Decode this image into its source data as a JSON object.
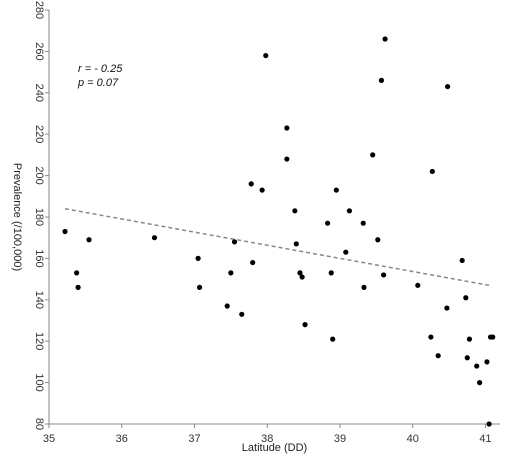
{
  "chart_data": {
    "type": "scatter",
    "title": "",
    "xlabel": "Latitude (DD)",
    "ylabel": "Prevalence (/100,000)",
    "xlim": [
      35,
      41.2
    ],
    "ylim": [
      80,
      280
    ],
    "x_ticks": [
      35,
      36,
      37,
      38,
      39,
      40,
      41
    ],
    "y_ticks": [
      80,
      100,
      120,
      140,
      160,
      180,
      200,
      220,
      240,
      260,
      280
    ],
    "grid": false,
    "legend": "none",
    "point_color": "#000000",
    "trendline_color": "#888888",
    "trendline": {
      "x": [
        35.22,
        41.05
      ],
      "y": [
        184,
        147
      ]
    },
    "annotations": {
      "r": "r = - 0.25",
      "p": "p = 0.07"
    },
    "points": [
      {
        "x": 35.22,
        "y": 173
      },
      {
        "x": 35.38,
        "y": 153
      },
      {
        "x": 35.4,
        "y": 146
      },
      {
        "x": 35.55,
        "y": 169
      },
      {
        "x": 36.45,
        "y": 170
      },
      {
        "x": 37.05,
        "y": 160
      },
      {
        "x": 37.07,
        "y": 146
      },
      {
        "x": 37.45,
        "y": 137
      },
      {
        "x": 37.5,
        "y": 153
      },
      {
        "x": 37.55,
        "y": 168
      },
      {
        "x": 37.65,
        "y": 133
      },
      {
        "x": 37.78,
        "y": 196
      },
      {
        "x": 37.8,
        "y": 158
      },
      {
        "x": 37.93,
        "y": 193
      },
      {
        "x": 37.98,
        "y": 258
      },
      {
        "x": 38.27,
        "y": 223
      },
      {
        "x": 38.27,
        "y": 208
      },
      {
        "x": 38.38,
        "y": 183
      },
      {
        "x": 38.4,
        "y": 167
      },
      {
        "x": 38.45,
        "y": 153
      },
      {
        "x": 38.48,
        "y": 151
      },
      {
        "x": 38.52,
        "y": 128
      },
      {
        "x": 38.83,
        "y": 177
      },
      {
        "x": 38.88,
        "y": 153
      },
      {
        "x": 38.9,
        "y": 121
      },
      {
        "x": 38.95,
        "y": 193
      },
      {
        "x": 39.08,
        "y": 163
      },
      {
        "x": 39.13,
        "y": 183
      },
      {
        "x": 39.32,
        "y": 177
      },
      {
        "x": 39.33,
        "y": 146
      },
      {
        "x": 39.45,
        "y": 210
      },
      {
        "x": 39.52,
        "y": 169
      },
      {
        "x": 39.57,
        "y": 246
      },
      {
        "x": 39.6,
        "y": 152
      },
      {
        "x": 39.62,
        "y": 266
      },
      {
        "x": 40.07,
        "y": 147
      },
      {
        "x": 40.25,
        "y": 122
      },
      {
        "x": 40.27,
        "y": 202
      },
      {
        "x": 40.35,
        "y": 113
      },
      {
        "x": 40.47,
        "y": 136
      },
      {
        "x": 40.48,
        "y": 243
      },
      {
        "x": 40.68,
        "y": 159
      },
      {
        "x": 40.73,
        "y": 141
      },
      {
        "x": 40.75,
        "y": 112
      },
      {
        "x": 40.78,
        "y": 121
      },
      {
        "x": 40.88,
        "y": 108
      },
      {
        "x": 40.92,
        "y": 100
      },
      {
        "x": 41.02,
        "y": 110
      },
      {
        "x": 41.05,
        "y": 80
      },
      {
        "x": 41.07,
        "y": 122
      },
      {
        "x": 41.1,
        "y": 122
      }
    ]
  }
}
